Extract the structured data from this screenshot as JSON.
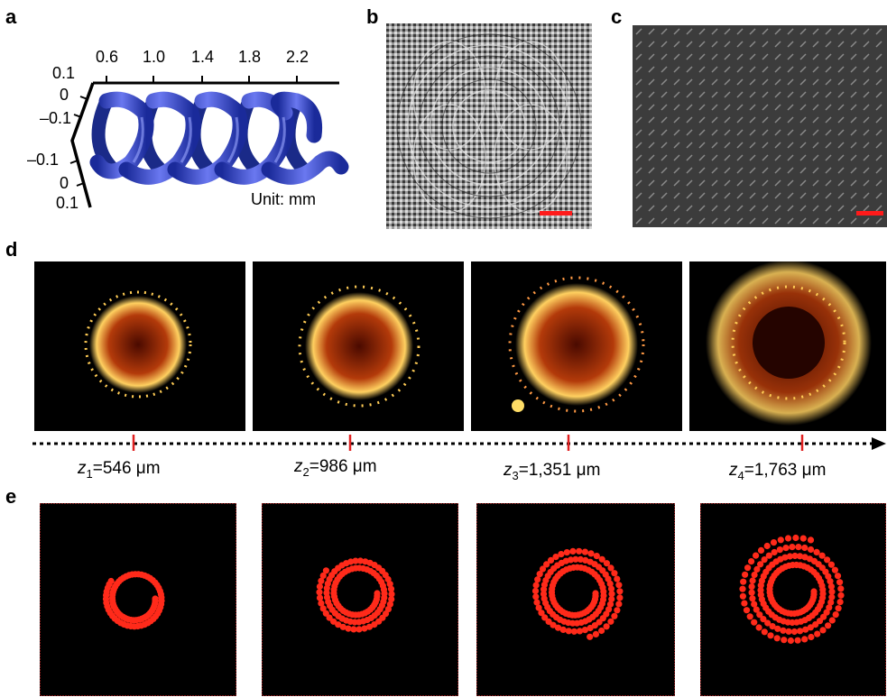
{
  "panel_labels": {
    "a": "a",
    "b": "b",
    "c": "c",
    "d": "d",
    "e": "e"
  },
  "panel_a": {
    "top_axis_ticks": [
      "0.6",
      "1.0",
      "1.4",
      "1.8",
      "2.2"
    ],
    "left_axis_upper_ticks": [
      "0.1",
      "0",
      "–0.1"
    ],
    "left_axis_lower_ticks": [
      "–0.1",
      "0",
      "0.1"
    ],
    "unit_label": "Unit: mm",
    "helix_color": "#2233bb"
  },
  "panel_b": {
    "scale_bar_color": "#ff1a1a"
  },
  "panel_c": {
    "scale_bar_color": "#ff1a1a"
  },
  "panel_d": {
    "depth_labels": [
      {
        "var": "z",
        "sub": "1",
        "value": "=546 μm"
      },
      {
        "var": "z",
        "sub": "2",
        "value": "=986 μm"
      },
      {
        "var": "z",
        "sub": "3",
        "value": "=1,351 μm"
      },
      {
        "var": "z",
        "sub": "4",
        "value": "=1,763 μm"
      }
    ],
    "marker_color": "#e02020"
  },
  "panel_e": {
    "dot_color": "#ff2a1a",
    "background": "#000000"
  }
}
